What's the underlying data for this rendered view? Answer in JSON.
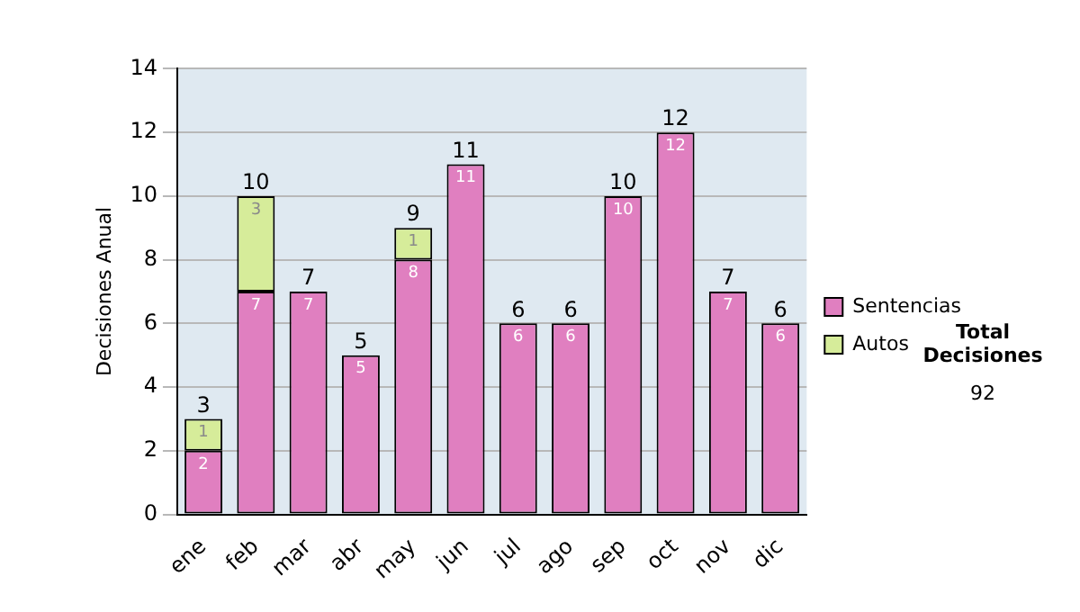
{
  "chart_data": {
    "type": "bar",
    "ylabel": "Decisiones Anual",
    "categories": [
      "ene",
      "feb",
      "mar",
      "abr",
      "may",
      "jun",
      "jul",
      "ago",
      "sep",
      "oct",
      "nov",
      "dic"
    ],
    "series": [
      {
        "name": "Sentencias",
        "color": "#e07fc0",
        "values": [
          2,
          7,
          7,
          5,
          8,
          11,
          6,
          6,
          10,
          12,
          7,
          6
        ]
      },
      {
        "name": "Autos",
        "color": "#d6ec9a",
        "values": [
          1,
          3,
          null,
          null,
          1,
          null,
          null,
          null,
          null,
          null,
          null,
          null
        ]
      }
    ],
    "stacked": true,
    "ylim": [
      0,
      14
    ],
    "yticks": [
      0,
      2,
      4,
      6,
      8,
      10,
      12,
      14
    ],
    "grid": "y",
    "legend": "right",
    "data_labels": true,
    "totals": [
      "3",
      "10",
      "7",
      "5",
      "9",
      "11",
      "6",
      "6",
      "10",
      "12",
      "7",
      "6"
    ],
    "annotations": [
      "Total Decisiones",
      "92"
    ]
  }
}
